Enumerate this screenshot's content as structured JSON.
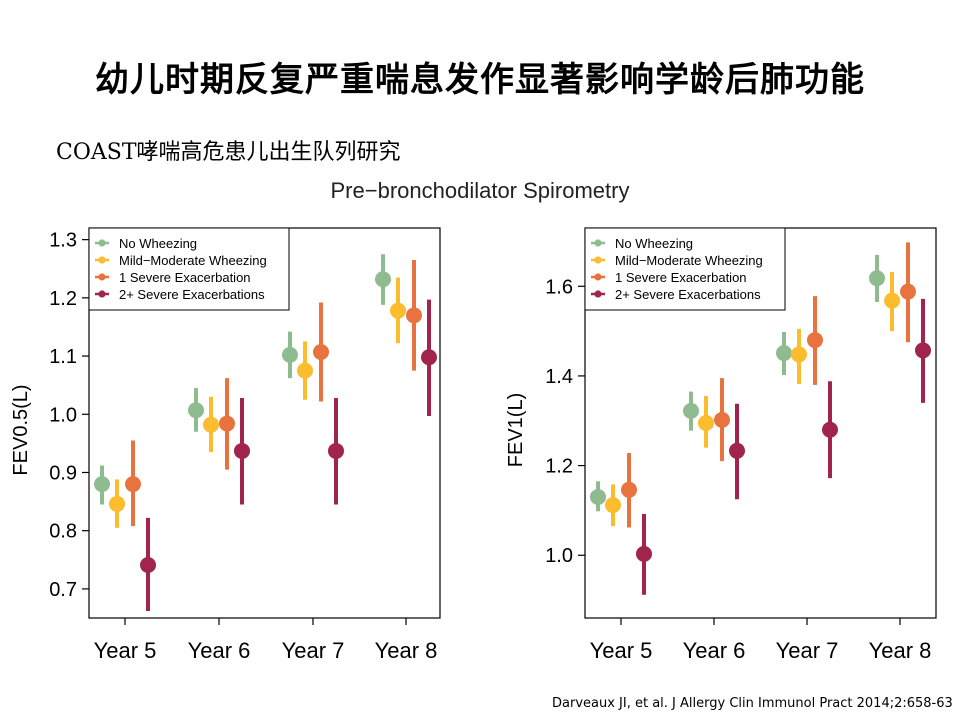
{
  "slide": {
    "title": "幼儿时期反复严重喘息发作显著影响学龄后肺功能",
    "subtitle": "COAST哮喘高危患儿出生队列研究",
    "chart_title": "Pre−bronchodilator Spirometry",
    "citation": "Darveaux JI, et al. J Allergy Clin Immunol Pract 2014;2:658-63"
  },
  "colors": {
    "no_wheezing": "#8fbc8f",
    "mild_moderate": "#fbbc2d",
    "one_severe": "#e9733f",
    "two_plus_severe": "#a0244b"
  },
  "chart_data": [
    {
      "type": "scatter",
      "title": "Pre−bronchodilator Spirometry",
      "xlabel": "",
      "ylabel": "FEV0.5(L)",
      "categories": [
        "Year 5",
        "Year 6",
        "Year 7",
        "Year 8"
      ],
      "ylim": [
        0.65,
        1.32
      ],
      "yticks": [
        "0.7",
        "0.8",
        "0.9",
        "1.0",
        "1.1",
        "1.2",
        "1.3"
      ],
      "legend": "top-left",
      "series": [
        {
          "name": "No Wheezing",
          "color": "#8fbc8f",
          "values": [
            0.88,
            1.007,
            1.102,
            1.232
          ],
          "lower": [
            0.845,
            0.97,
            1.062,
            1.188
          ],
          "upper": [
            0.912,
            1.045,
            1.142,
            1.275
          ]
        },
        {
          "name": "Mild−Moderate Wheezing",
          "color": "#fbbc2d",
          "values": [
            0.846,
            0.982,
            1.075,
            1.178
          ],
          "lower": [
            0.805,
            0.935,
            1.025,
            1.122
          ],
          "upper": [
            0.888,
            1.03,
            1.125,
            1.235
          ]
        },
        {
          "name": "1 Severe Exacerbation",
          "color": "#e9733f",
          "values": [
            0.88,
            0.984,
            1.107,
            1.17
          ],
          "lower": [
            0.808,
            0.905,
            1.022,
            1.075
          ],
          "upper": [
            0.955,
            1.062,
            1.192,
            1.265
          ]
        },
        {
          "name": "2+ Severe Exacerbations",
          "color": "#a0244b",
          "values": [
            0.741,
            0.937,
            0.937,
            1.098
          ],
          "lower": [
            0.662,
            0.845,
            0.845,
            0.997
          ],
          "upper": [
            0.822,
            1.028,
            1.028,
            1.197
          ]
        }
      ]
    },
    {
      "type": "scatter",
      "title": "Pre−bronchodilator Spirometry",
      "xlabel": "",
      "ylabel": "FEV1(L)",
      "categories": [
        "Year 5",
        "Year 6",
        "Year 7",
        "Year 8"
      ],
      "ylim": [
        0.86,
        1.73
      ],
      "yticks": [
        "1.0",
        "1.2",
        "1.4",
        "1.6"
      ],
      "legend": "top-left",
      "series": [
        {
          "name": "No Wheezing",
          "color": "#8fbc8f",
          "values": [
            1.13,
            1.322,
            1.451,
            1.618
          ],
          "lower": [
            1.098,
            1.278,
            1.402,
            1.565
          ],
          "upper": [
            1.165,
            1.365,
            1.498,
            1.67
          ]
        },
        {
          "name": "Mild−Moderate Wheezing",
          "color": "#fbbc2d",
          "values": [
            1.112,
            1.295,
            1.448,
            1.568
          ],
          "lower": [
            1.065,
            1.24,
            1.382,
            1.5
          ],
          "upper": [
            1.158,
            1.355,
            1.505,
            1.632
          ]
        },
        {
          "name": "1 Severe Exacerbation",
          "color": "#e9733f",
          "values": [
            1.146,
            1.302,
            1.48,
            1.588
          ],
          "lower": [
            1.062,
            1.21,
            1.38,
            1.475
          ],
          "upper": [
            1.228,
            1.395,
            1.578,
            1.698
          ]
        },
        {
          "name": "2+ Severe Exacerbations",
          "color": "#a0244b",
          "values": [
            1.003,
            1.233,
            1.28,
            1.457
          ],
          "lower": [
            0.912,
            1.125,
            1.172,
            1.34
          ],
          "upper": [
            1.092,
            1.338,
            1.388,
            1.572
          ]
        }
      ]
    }
  ]
}
